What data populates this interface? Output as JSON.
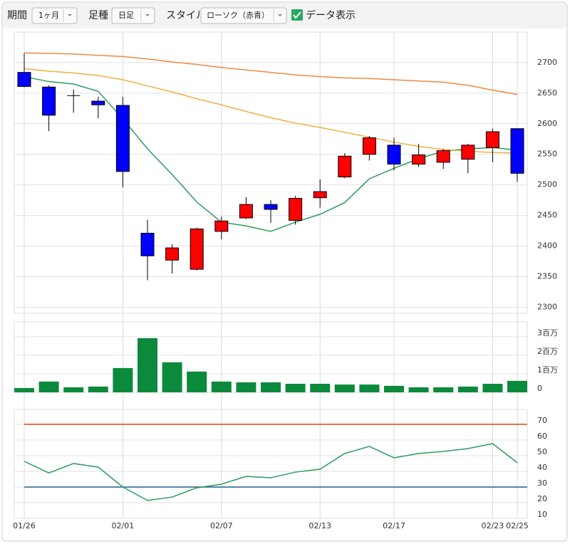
{
  "toolbar": {
    "period_label": "期間",
    "period": "1ヶ月",
    "foot_label": "足種",
    "foot": "日足",
    "style_label": "スタイル",
    "style": "ローソク（赤青）",
    "show_data": "データ表示"
  },
  "chart_data": [
    {
      "type": "candlestick",
      "categories": [
        "01/26",
        null,
        null,
        null,
        "02/01",
        null,
        null,
        null,
        "02/07",
        null,
        null,
        null,
        "02/13",
        null,
        null,
        "02/17",
        null,
        null,
        null,
        "02/23",
        "02/25"
      ],
      "open": [
        2684,
        2660,
        2646,
        2637,
        2630,
        2421,
        2377,
        2362,
        2424,
        2446,
        2468,
        2442,
        2479,
        2513,
        2550,
        2565,
        2534,
        2537,
        2542,
        2561,
        2592
      ],
      "high": [
        2715,
        2663,
        2656,
        2644,
        2644,
        2443,
        2403,
        2430,
        2448,
        2480,
        2475,
        2482,
        2509,
        2552,
        2580,
        2577,
        2567,
        2559,
        2567,
        2592,
        2592
      ],
      "low": [
        2660,
        2588,
        2618,
        2609,
        2496,
        2344,
        2355,
        2360,
        2411,
        2444,
        2438,
        2435,
        2463,
        2511,
        2540,
        2524,
        2529,
        2526,
        2519,
        2537,
        2505
      ],
      "close": [
        2661,
        2614,
        2646,
        2631,
        2522,
        2384,
        2397,
        2428,
        2441,
        2468,
        2460,
        2478,
        2489,
        2547,
        2577,
        2534,
        2549,
        2556,
        2565,
        2587,
        2519
      ],
      "up_color": "#ff0000",
      "down_color": "#0000ff",
      "lines": [
        {
          "color": "#2a9d5c",
          "values": [
            2677,
            2669,
            2665,
            2653,
            2608,
            2559,
            2517,
            2472,
            2439,
            2433,
            2424,
            2439,
            2452,
            2471,
            2510,
            2527,
            2543,
            2555,
            2559,
            2561,
            2557
          ]
        },
        {
          "color": "#f0b040",
          "values": [
            2690,
            2686,
            2683,
            2679,
            2672,
            2662,
            2652,
            2641,
            2631,
            2620,
            2610,
            2601,
            2594,
            2586,
            2578,
            2570,
            2563,
            2558,
            2555,
            2553,
            2552
          ]
        },
        {
          "color": "#ee8844",
          "values": [
            2716,
            2715,
            2714,
            2712,
            2710,
            2706,
            2701,
            2697,
            2692,
            2688,
            2684,
            2680,
            2677,
            2675,
            2674,
            2672,
            2670,
            2668,
            2663,
            2655,
            2648
          ]
        }
      ],
      "ylim": [
        2290,
        2750
      ],
      "yticks": [
        2300,
        2350,
        2400,
        2450,
        2500,
        2550,
        2600,
        2650,
        2700
      ],
      "grid": true
    },
    {
      "type": "bar",
      "color": "#0b8a3c",
      "values": [
        230000,
        580000,
        270000,
        310000,
        1310000,
        2920000,
        1620000,
        1120000,
        580000,
        540000,
        540000,
        460000,
        460000,
        420000,
        420000,
        350000,
        270000,
        270000,
        310000,
        460000,
        620000
      ],
      "ylim": [
        0,
        3800000
      ],
      "yticks": [
        0,
        {
          "value": 1000000,
          "label": "1百万"
        },
        {
          "value": 2000000,
          "label": "2百万"
        },
        {
          "value": 3000000,
          "label": "3百万"
        }
      ],
      "grid": true
    },
    {
      "type": "line",
      "series": [
        {
          "color": "#2a9d5c",
          "values": [
            46.4,
            39,
            45,
            42.7,
            30,
            21.4,
            23.6,
            29.5,
            31.8,
            36.8,
            35.9,
            39.5,
            41.4,
            51.4,
            55.9,
            48.6,
            51.4,
            52.7,
            54.5,
            57.7,
            45.5
          ]
        }
      ],
      "hlines": [
        {
          "value": 70,
          "color": "#e0401a"
        },
        {
          "value": 30,
          "color": "#1f5f8b"
        }
      ],
      "ylim": [
        10,
        79.5
      ],
      "yticks": [
        10,
        20,
        30,
        40,
        50,
        60,
        70
      ],
      "grid": true
    }
  ]
}
